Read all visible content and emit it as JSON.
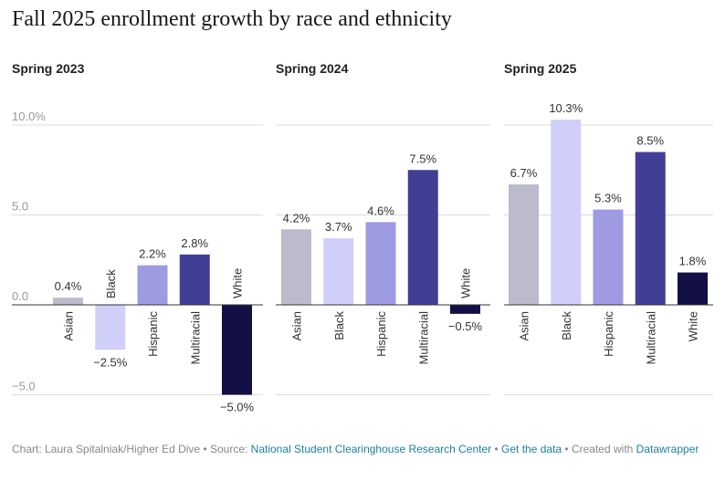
{
  "title": "Fall 2025 enrollment growth by race and ethnicity",
  "colors": {
    "Asian": "#bbbbcb",
    "Black": "#d0cffa",
    "Hispanic": "#9e9be3",
    "Multiracial": "#413f95",
    "White": "#131045",
    "grid": "#dddddd",
    "axis": "#333333",
    "link": "#1d81a2"
  },
  "chart_data": {
    "type": "bar",
    "title": "Fall 2025 enrollment growth by race and ethnicity",
    "categories": [
      "Asian",
      "Black",
      "Hispanic",
      "Multiracial",
      "White"
    ],
    "yticks": [
      "10.0%",
      "5.0",
      "0.0",
      "−5.0"
    ],
    "ylim": [
      -5.5,
      10.5
    ],
    "grid": true,
    "panels": [
      {
        "title": "Spring 2023",
        "values": [
          0.4,
          -2.5,
          2.2,
          2.8,
          -5.0
        ],
        "labels": [
          "0.4%",
          "−2.5%",
          "2.2%",
          "2.8%",
          "−5.0%"
        ]
      },
      {
        "title": "Spring 2024",
        "values": [
          4.2,
          3.7,
          4.6,
          7.5,
          -0.5
        ],
        "labels": [
          "4.2%",
          "3.7%",
          "4.6%",
          "7.5%",
          "−0.5%"
        ]
      },
      {
        "title": "Spring 2025",
        "values": [
          6.7,
          10.3,
          5.3,
          8.5,
          1.8
        ],
        "labels": [
          "6.7%",
          "10.3%",
          "5.3%",
          "8.5%",
          "1.8%"
        ]
      }
    ]
  },
  "footer": {
    "prefix": "Chart: Laura Spitalniak/Higher Ed Dive • Source: ",
    "source_link": "National Student Clearinghouse Research Center",
    "sep": " • ",
    "data_link": "Get the data",
    "created": " • Created with ",
    "tool_link": "Datawrapper"
  }
}
